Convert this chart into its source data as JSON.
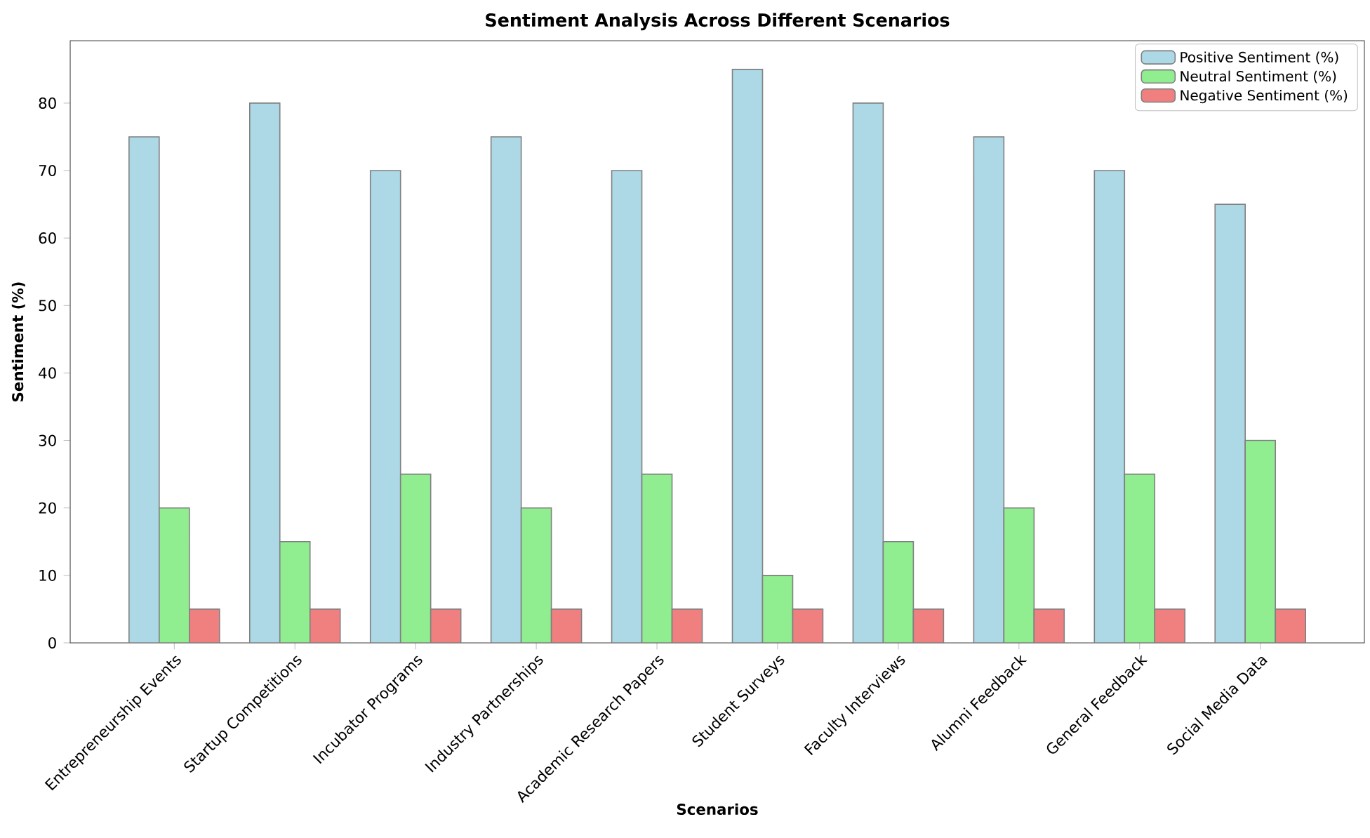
{
  "chart_data": {
    "type": "bar",
    "title": "Sentiment Analysis Across Different Scenarios",
    "xlabel": "Scenarios",
    "ylabel": "Sentiment (%)",
    "categories": [
      "Entrepreneurship Events",
      "Startup Competitions",
      "Incubator Programs",
      "Industry Partnerships",
      "Academic Research Papers",
      "Student Surveys",
      "Faculty Interviews",
      "Alumni Feedback",
      "General Feedback",
      "Social Media Data"
    ],
    "series": [
      {
        "name": "Positive Sentiment (%)",
        "color": "#add8e6",
        "values": [
          75,
          80,
          70,
          75,
          70,
          85,
          80,
          75,
          70,
          65
        ]
      },
      {
        "name": "Neutral Sentiment (%)",
        "color": "#90ee90",
        "values": [
          20,
          15,
          25,
          20,
          25,
          10,
          15,
          20,
          25,
          30
        ]
      },
      {
        "name": "Negative Sentiment (%)",
        "color": "#f08080",
        "values": [
          5,
          5,
          5,
          5,
          5,
          5,
          5,
          5,
          5,
          5
        ]
      }
    ],
    "ylim": [
      0,
      89.25
    ],
    "yticks": [
      0,
      10,
      20,
      30,
      40,
      50,
      60,
      70,
      80
    ],
    "legend": "top right"
  }
}
